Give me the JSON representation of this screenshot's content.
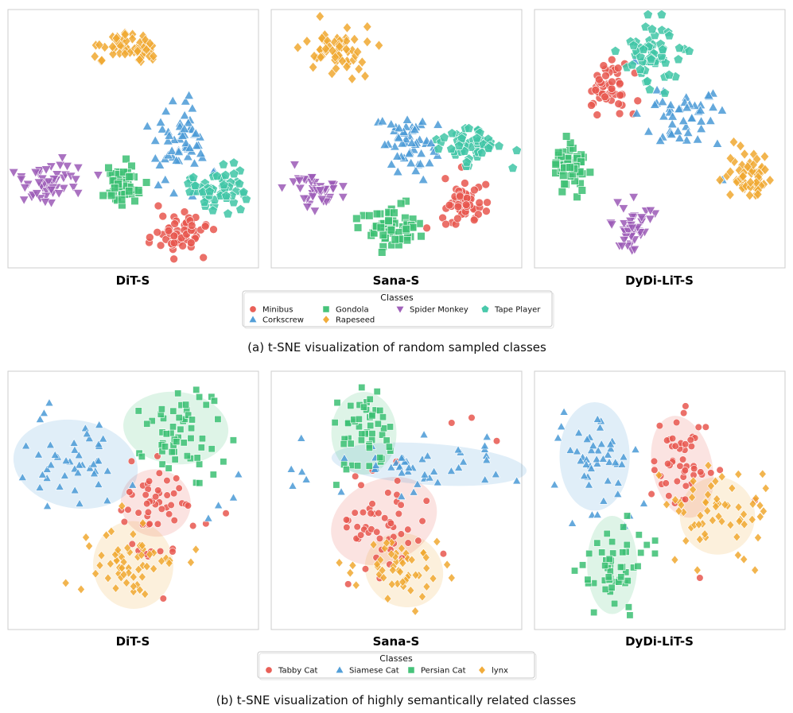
{
  "figure": {
    "caption_a": "(a) t-SNE visualization of random sampled classes",
    "caption_b": "(b) t-SNE visualization of highly semantically related classes"
  },
  "colors": {
    "red": "#e8574f",
    "blue": "#4a9ad6",
    "green": "#3cc073",
    "orange": "#f0a830",
    "purple": "#9b59b6",
    "teal": "#3fc6a6"
  },
  "chart_data": [
    {
      "type": "scatter",
      "group": "a",
      "title": "DiT-S",
      "xlim": [
        0,
        100
      ],
      "ylim": [
        0,
        100
      ],
      "grid": false,
      "series": [
        {
          "name": "Minibus",
          "color": "red",
          "marker": "circle",
          "center": [
            69,
            86
          ],
          "spread": [
            5,
            3.5
          ],
          "count": 60,
          "outliers": [
            [
              60,
              76
            ],
            [
              78,
              96
            ]
          ]
        },
        {
          "name": "Corkscrew",
          "color": "blue",
          "marker": "triangle-up",
          "center": [
            69,
            54
          ],
          "spread": [
            6,
            8
          ],
          "count": 55,
          "outliers": [
            [
              60,
              68
            ],
            [
              82,
              63
            ],
            [
              75,
              48
            ]
          ]
        },
        {
          "name": "Gondola",
          "color": "green",
          "marker": "square",
          "center": [
            46,
            68
          ],
          "spread": [
            4.5,
            4
          ],
          "count": 58,
          "outliers": [
            [
              38,
              72
            ]
          ]
        },
        {
          "name": "Rapeseed",
          "color": "orange",
          "marker": "diamond",
          "center": [
            49,
            15
          ],
          "spread": [
            6,
            3.2
          ],
          "count": 58,
          "outliers": []
        },
        {
          "name": "Spider Monkey",
          "color": "purple",
          "marker": "triangle-down",
          "center": [
            16,
            67
          ],
          "spread": [
            6,
            4
          ],
          "count": 48,
          "outliers": [
            [
              28,
              71
            ],
            [
              36,
              64
            ]
          ]
        },
        {
          "name": "Tape Player",
          "color": "teal",
          "marker": "pentagon",
          "center": [
            83,
            70
          ],
          "spread": [
            6,
            4
          ],
          "count": 50,
          "outliers": [
            [
              74,
              65
            ],
            [
              86,
              60
            ]
          ]
        }
      ]
    },
    {
      "type": "scatter",
      "group": "a",
      "title": "Sana-S",
      "xlim": [
        0,
        100
      ],
      "ylim": [
        0,
        100
      ],
      "grid": false,
      "series": [
        {
          "name": "Minibus",
          "color": "red",
          "marker": "circle",
          "center": [
            76,
            74
          ],
          "spread": [
            5,
            4
          ],
          "count": 55,
          "outliers": [
            [
              76,
              61
            ]
          ]
        },
        {
          "name": "Corkscrew",
          "color": "blue",
          "marker": "triangle-up",
          "center": [
            55,
            51
          ],
          "spread": [
            5,
            6
          ],
          "count": 50,
          "outliers": [
            [
              48,
              60
            ],
            [
              65,
              55
            ]
          ]
        },
        {
          "name": "Gondola",
          "color": "green",
          "marker": "square",
          "center": [
            47,
            84
          ],
          "spread": [
            5,
            5
          ],
          "count": 60,
          "outliers": []
        },
        {
          "name": "Rapeseed",
          "color": "orange",
          "marker": "diamond",
          "center": [
            27,
            17
          ],
          "spread": [
            6,
            4.5
          ],
          "count": 60,
          "outliers": []
        },
        {
          "name": "Spider Monkey",
          "color": "purple",
          "marker": "triangle-down",
          "center": [
            18,
            70
          ],
          "spread": [
            6,
            4
          ],
          "count": 40,
          "outliers": []
        },
        {
          "name": "Tape Player",
          "color": "teal",
          "marker": "pentagon",
          "center": [
            80,
            53
          ],
          "spread": [
            7,
            4
          ],
          "count": 50,
          "outliers": []
        }
      ]
    },
    {
      "type": "scatter",
      "group": "a",
      "title": "DyDi-LiT-S",
      "xlim": [
        0,
        100
      ],
      "ylim": [
        0,
        100
      ],
      "grid": false,
      "series": [
        {
          "name": "Minibus",
          "color": "red",
          "marker": "circle",
          "center": [
            30,
            31
          ],
          "spread": [
            4.5,
            5
          ],
          "count": 50,
          "outliers": [
            [
              36,
              21
            ]
          ]
        },
        {
          "name": "Corkscrew",
          "color": "blue",
          "marker": "triangle-up",
          "center": [
            58,
            40
          ],
          "spread": [
            7,
            6
          ],
          "count": 45,
          "outliers": [
            [
              40,
              20
            ],
            [
              75,
              66
            ],
            [
              73,
              52
            ]
          ]
        },
        {
          "name": "Gondola",
          "color": "green",
          "marker": "square",
          "center": [
            14,
            60
          ],
          "spread": [
            4,
            5
          ],
          "count": 50,
          "outliers": [
            [
              19,
              70
            ]
          ]
        },
        {
          "name": "Rapeseed",
          "color": "orange",
          "marker": "diamond",
          "center": [
            86,
            64
          ],
          "spread": [
            4,
            5
          ],
          "count": 55,
          "outliers": [
            [
              74,
              66
            ]
          ]
        },
        {
          "name": "Spider Monkey",
          "color": "purple",
          "marker": "triangle-down",
          "center": [
            39,
            84
          ],
          "spread": [
            4,
            5
          ],
          "count": 40,
          "outliers": []
        },
        {
          "name": "Tape Player",
          "color": "teal",
          "marker": "pentagon",
          "center": [
            47,
            17
          ],
          "spread": [
            6,
            6
          ],
          "count": 55,
          "outliers": [
            [
              46,
              31
            ]
          ]
        }
      ]
    },
    {
      "type": "scatter",
      "group": "b",
      "title": "DiT-S",
      "xlim": [
        0,
        100
      ],
      "ylim": [
        0,
        100
      ],
      "grid": false,
      "series": [
        {
          "name": "Tabby Cat",
          "color": "red",
          "marker": "circle",
          "center": [
            59,
            52
          ],
          "spread": [
            7,
            9
          ],
          "count": 50,
          "outliers": [
            [
              79,
              59
            ],
            [
              87,
              55
            ],
            [
              62,
              88
            ]
          ],
          "ellipse": [
            59,
            51,
            14,
            13,
            15
          ]
        },
        {
          "name": "Siamese Cat",
          "color": "blue",
          "marker": "triangle-up",
          "center": [
            25,
            36
          ],
          "spread": [
            12,
            9
          ],
          "count": 45,
          "outliers": [
            [
              90,
              49
            ],
            [
              84,
              52
            ],
            [
              80,
              57
            ],
            [
              92,
              40
            ]
          ],
          "ellipse": [
            27,
            36,
            25,
            17,
            10
          ]
        },
        {
          "name": "Persian Cat",
          "color": "green",
          "marker": "square",
          "center": [
            68,
            24
          ],
          "spread": [
            9,
            8
          ],
          "count": 55,
          "outliers": [
            [
              86,
              35
            ],
            [
              82,
              40
            ]
          ],
          "ellipse": [
            67,
            22,
            21,
            14,
            5
          ]
        },
        {
          "name": "lynx",
          "color": "orange",
          "marker": "diamond",
          "center": [
            49,
            75
          ],
          "spread": [
            9,
            8
          ],
          "count": 55,
          "outliers": [
            [
              73,
              74
            ],
            [
              75,
              69
            ]
          ],
          "ellipse": [
            50,
            75,
            16,
            17,
            -5
          ]
        }
      ]
    },
    {
      "type": "scatter",
      "group": "b",
      "title": "Sana-S",
      "xlim": [
        0,
        100
      ],
      "ylim": [
        0,
        100
      ],
      "grid": false,
      "series": [
        {
          "name": "Tabby Cat",
          "color": "red",
          "marker": "circle",
          "center": [
            45,
            58
          ],
          "spread": [
            10,
            8
          ],
          "count": 55,
          "outliers": [
            [
              72,
              20
            ],
            [
              80,
              18
            ],
            [
              90,
              27
            ]
          ],
          "ellipse": [
            45,
            58,
            22,
            16,
            -25
          ]
        },
        {
          "name": "Siamese Cat",
          "color": "blue",
          "marker": "triangle-up",
          "center": [
            62,
            37
          ],
          "spread": [
            20,
            6
          ],
          "count": 45,
          "outliers": [
            [
              12,
              26
            ],
            [
              8,
              38
            ],
            [
              14,
              42
            ]
          ],
          "ellipse": [
            63,
            36,
            39,
            8,
            4
          ]
        },
        {
          "name": "Persian Cat",
          "color": "green",
          "marker": "square",
          "center": [
            37,
            22
          ],
          "spread": [
            7,
            8
          ],
          "count": 50,
          "outliers": [
            [
              26,
              44
            ],
            [
              30,
              38
            ]
          ],
          "ellipse": [
            37,
            24,
            13,
            16,
            0
          ]
        },
        {
          "name": "lynx",
          "color": "orange",
          "marker": "diamond",
          "center": [
            54,
            77
          ],
          "spread": [
            9,
            7
          ],
          "count": 50,
          "outliers": [
            [
              72,
              80
            ]
          ],
          "ellipse": [
            53,
            77,
            16,
            14,
            30
          ]
        }
      ]
    },
    {
      "type": "scatter",
      "group": "b",
      "title": "DyDi-LiT-S",
      "xlim": [
        0,
        100
      ],
      "ylim": [
        0,
        100
      ],
      "grid": false,
      "series": [
        {
          "name": "Tabby Cat",
          "color": "red",
          "marker": "circle",
          "center": [
            58,
            35
          ],
          "spread": [
            6,
            9
          ],
          "count": 50,
          "outliers": [
            [
              88,
              50
            ],
            [
              66,
              80
            ]
          ],
          "ellipse": [
            59,
            37,
            12,
            20,
            -12
          ]
        },
        {
          "name": "Siamese Cat",
          "color": "blue",
          "marker": "triangle-up",
          "center": [
            23,
            33
          ],
          "spread": [
            7,
            9
          ],
          "count": 45,
          "outliers": [
            [
              8,
              44
            ],
            [
              38,
              56
            ],
            [
              36,
              60
            ]
          ],
          "ellipse": [
            24,
            33,
            14,
            21,
            0
          ]
        },
        {
          "name": "Persian Cat",
          "color": "green",
          "marker": "square",
          "center": [
            31,
            76
          ],
          "spread": [
            6,
            9
          ],
          "count": 50,
          "outliers": [
            [
              37,
              56
            ]
          ],
          "ellipse": [
            31,
            75,
            10,
            19,
            0
          ]
        },
        {
          "name": "lynx",
          "color": "orange",
          "marker": "diamond",
          "center": [
            74,
            55
          ],
          "spread": [
            9,
            8
          ],
          "count": 55,
          "outliers": [
            [
              88,
              77
            ],
            [
              65,
              77
            ],
            [
              56,
              73
            ],
            [
              90,
              52
            ]
          ],
          "ellipse": [
            73,
            56,
            15,
            15,
            -8
          ]
        }
      ]
    }
  ],
  "legend_a": {
    "title": "Classes",
    "items": [
      {
        "label": "Minibus",
        "color": "red",
        "marker": "circle"
      },
      {
        "label": "Corkscrew",
        "color": "blue",
        "marker": "triangle-up"
      },
      {
        "label": "Gondola",
        "color": "green",
        "marker": "square"
      },
      {
        "label": "Rapeseed",
        "color": "orange",
        "marker": "diamond"
      },
      {
        "label": "Spider Monkey",
        "color": "purple",
        "marker": "triangle-down"
      },
      {
        "label": "Tape Player",
        "color": "teal",
        "marker": "pentagon"
      }
    ]
  },
  "legend_b": {
    "title": "Classes",
    "items": [
      {
        "label": "Tabby Cat",
        "color": "red",
        "marker": "circle"
      },
      {
        "label": "Siamese Cat",
        "color": "blue",
        "marker": "triangle-up"
      },
      {
        "label": "Persian Cat",
        "color": "green",
        "marker": "square"
      },
      {
        "label": "lynx",
        "color": "orange",
        "marker": "diamond"
      }
    ]
  }
}
